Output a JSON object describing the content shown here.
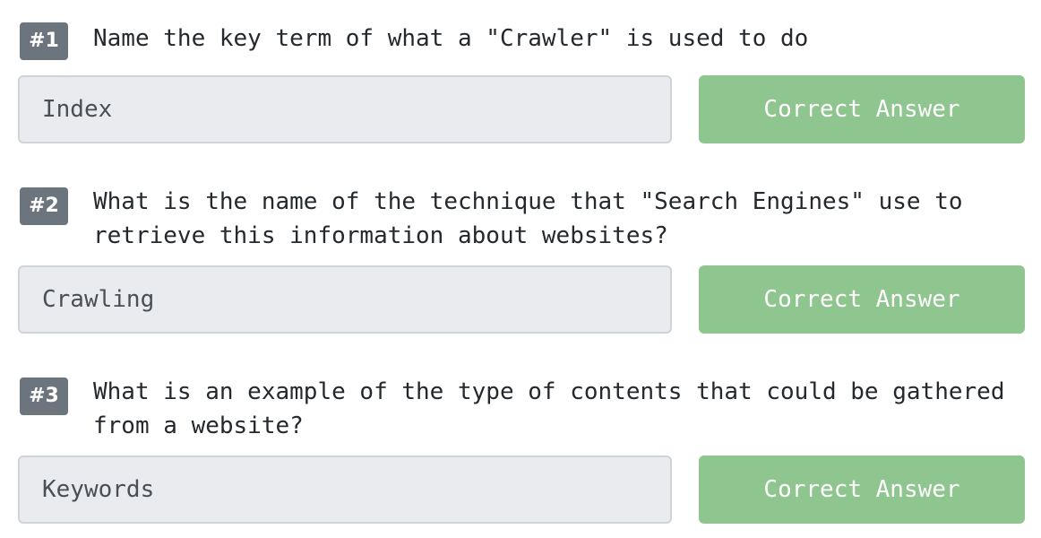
{
  "colors": {
    "badge_bg": "#6c757d",
    "correct_button_bg": "#8fc58e",
    "input_bg": "#e9ebee",
    "input_border": "#cfd4da"
  },
  "questions": [
    {
      "number": "#1",
      "text": "Name the key term of what a \"Crawler\" is used to do",
      "answer_value": "Index",
      "button_label": "Correct Answer"
    },
    {
      "number": "#2",
      "text": "What is the name of the technique that \"Search Engines\" use to retrieve this information about websites?",
      "answer_value": "Crawling",
      "button_label": "Correct Answer"
    },
    {
      "number": "#3",
      "text": "What is an example of the type of contents that could be gathered from a website?",
      "answer_value": "Keywords",
      "button_label": "Correct Answer"
    }
  ]
}
